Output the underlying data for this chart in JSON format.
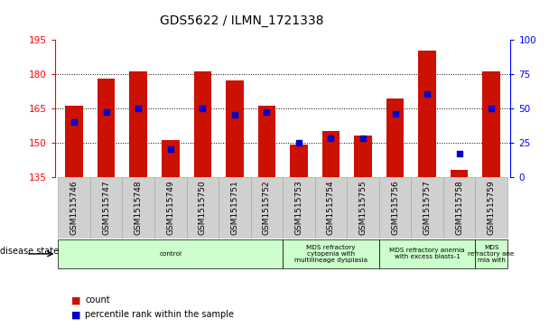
{
  "title": "GDS5622 / ILMN_1721338",
  "samples": [
    "GSM1515746",
    "GSM1515747",
    "GSM1515748",
    "GSM1515749",
    "GSM1515750",
    "GSM1515751",
    "GSM1515752",
    "GSM1515753",
    "GSM1515754",
    "GSM1515755",
    "GSM1515756",
    "GSM1515757",
    "GSM1515758",
    "GSM1515759"
  ],
  "bar_values": [
    166,
    178,
    181,
    151,
    181,
    177,
    166,
    149,
    155,
    153,
    169,
    190,
    138,
    181
  ],
  "dot_values_pct": [
    40,
    47,
    50,
    20,
    50,
    45,
    47,
    25,
    28,
    28,
    46,
    60,
    17,
    50
  ],
  "ylim_left": [
    135,
    195
  ],
  "ylim_right": [
    0,
    100
  ],
  "yticks_left": [
    135,
    150,
    165,
    180,
    195
  ],
  "yticks_right": [
    0,
    25,
    50,
    75,
    100
  ],
  "bar_color": "#cc1100",
  "dot_color": "#0000cc",
  "background_color": "#ffffff",
  "tick_bg_color": "#d0d0d0",
  "tick_border_color": "#aaaaaa",
  "disease_groups": [
    {
      "label": "control",
      "start": 0,
      "end": 7
    },
    {
      "label": "MDS refractory\ncytopenia with\nmultilineage dysplasia",
      "start": 7,
      "end": 10
    },
    {
      "label": "MDS refractory anemia\nwith excess blasts-1",
      "start": 10,
      "end": 13
    },
    {
      "label": "MDS\nrefractory ane\nmia with",
      "start": 13,
      "end": 14
    }
  ],
  "disease_box_color": "#ccffcc",
  "bar_bottom": 135,
  "legend_items": [
    {
      "color": "#cc1100",
      "label": "count"
    },
    {
      "color": "#0000cc",
      "label": "percentile rank within the sample"
    }
  ]
}
